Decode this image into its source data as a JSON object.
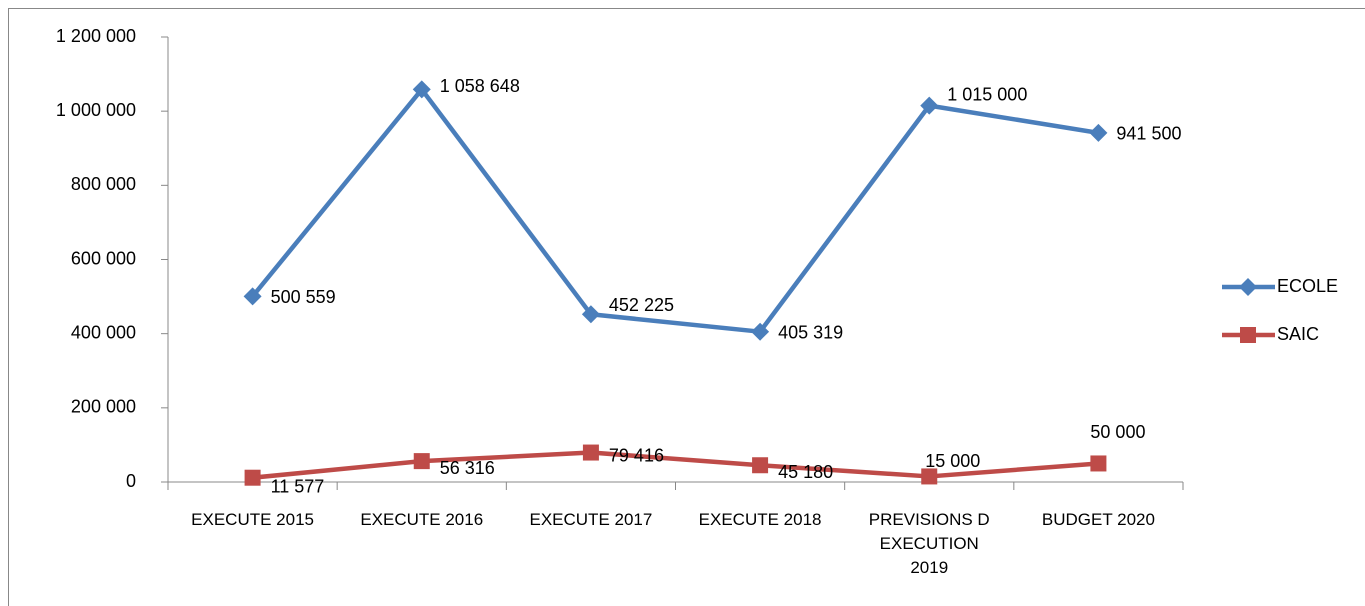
{
  "chart_data": {
    "type": "line",
    "categories": [
      "EXECUTE 2015",
      "EXECUTE 2016",
      "EXECUTE 2017",
      "EXECUTE 2018",
      "PREVISIONS D EXECUTION 2019",
      "BUDGET 2020"
    ],
    "series": [
      {
        "name": "ECOLE",
        "color": "#4a7ebb",
        "marker": "diamond",
        "values": [
          500559,
          1058648,
          452225,
          405319,
          1015000,
          941500
        ],
        "value_labels": [
          "500 559",
          "1 058 648",
          "452 225",
          "405 319",
          "1 015 000",
          "941 500"
        ]
      },
      {
        "name": "SAIC",
        "color": "#be4b48",
        "marker": "square",
        "values": [
          11577,
          56316,
          79416,
          45180,
          15000,
          50000
        ],
        "value_labels": [
          "11 577",
          "56 316",
          "79 416",
          "45 180",
          "15 000",
          "50 000"
        ]
      }
    ],
    "ylim": [
      0,
      1200000
    ],
    "yticks": [
      0,
      {
        "value": 200000,
        "label": "200 000"
      },
      {
        "value": 400000,
        "label": "400 000"
      },
      {
        "value": 600000,
        "label": "600 000"
      },
      {
        "value": 800000,
        "label": "800 000"
      },
      {
        "value": 1000000,
        "label": "1 000 000"
      },
      {
        "value": 1200000,
        "label": "1 200 000"
      }
    ],
    "grid": false,
    "legend": "right"
  }
}
